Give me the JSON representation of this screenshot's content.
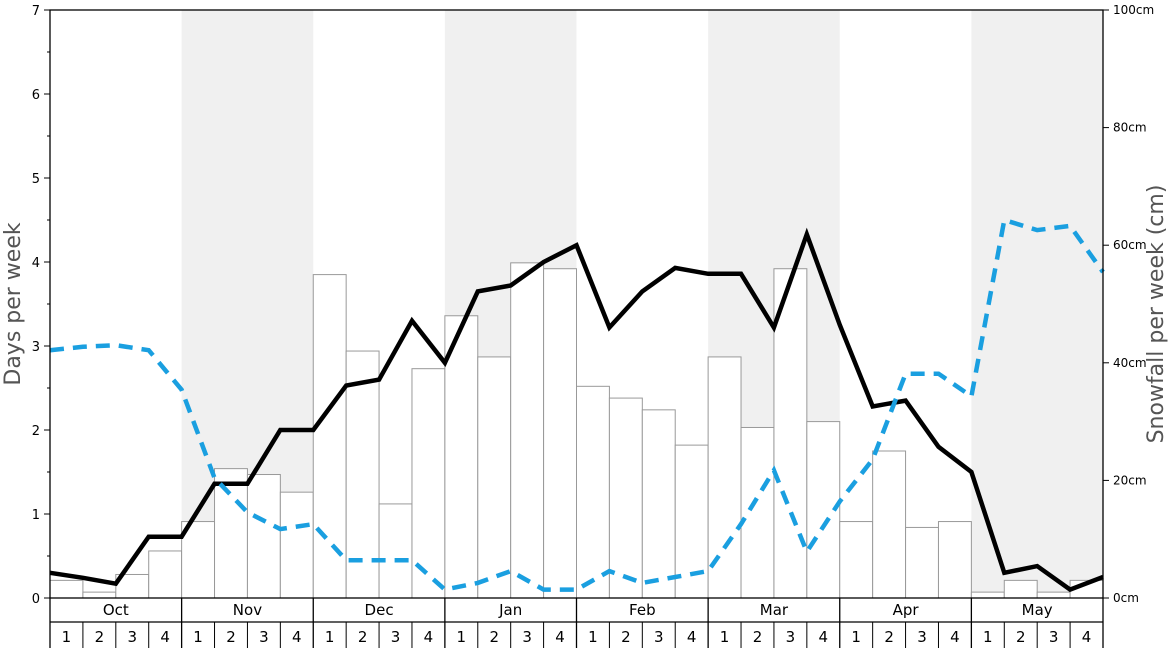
{
  "chart_data": {
    "type": "bar",
    "title": "",
    "ylabel_left": "Days per week",
    "ylabel_right": "Snowfall per week (cm)",
    "ylim_left": [
      0,
      7
    ],
    "ylim_right": [
      0,
      100
    ],
    "left_ticks": [
      "0",
      "1",
      "2",
      "3",
      "4",
      "5",
      "6",
      "7"
    ],
    "right_ticks": [
      "0cm",
      "20cm",
      "40cm",
      "60cm",
      "80cm",
      "100cm"
    ],
    "right_tick_values": [
      0,
      20,
      40,
      60,
      80,
      100
    ],
    "months": [
      "Oct",
      "Nov",
      "Dec",
      "Jan",
      "Feb",
      "Mar",
      "Apr",
      "May"
    ],
    "shaded_months": [
      "Nov",
      "Jan",
      "Mar",
      "May"
    ],
    "weeks": [
      "1",
      "2",
      "3",
      "4"
    ],
    "colors": {
      "bar_fill": "#ffffff",
      "bar_stroke": "#999999",
      "solid_line": "#000000",
      "dashed_line": "#1a9fe0",
      "shade": "#f0f0f0"
    },
    "series": [
      {
        "kind": "bars",
        "axis": "right",
        "values": [
          3,
          1,
          4,
          8,
          13,
          22,
          21,
          18,
          55,
          42,
          16,
          39,
          48,
          41,
          57,
          56,
          36,
          34,
          32,
          26,
          41,
          29,
          56,
          30,
          13,
          25,
          12,
          13,
          1,
          3,
          1,
          3
        ]
      },
      {
        "kind": "line",
        "style": "solid",
        "axis": "left",
        "values": [
          0.3,
          0.24,
          0.17,
          0.73,
          0.73,
          1.36,
          1.36,
          2.0,
          2.0,
          2.53,
          2.6,
          3.3,
          2.8,
          3.65,
          3.72,
          4.0,
          4.2,
          3.22,
          3.65,
          3.93,
          3.86,
          3.86,
          3.22,
          4.33,
          3.25,
          2.28,
          2.35,
          1.8,
          1.5,
          0.3,
          0.38,
          0.1,
          0.25
        ]
      },
      {
        "kind": "line",
        "style": "dashed",
        "axis": "left",
        "values": [
          2.95,
          2.99,
          3.01,
          2.95,
          2.48,
          1.43,
          1.02,
          0.82,
          0.88,
          0.45,
          0.45,
          0.45,
          0.1,
          0.18,
          0.32,
          0.1,
          0.1,
          0.32,
          0.18,
          0.25,
          0.32,
          0.88,
          1.52,
          0.55,
          1.15,
          1.65,
          2.67,
          2.67,
          2.4,
          4.5,
          4.38,
          4.43,
          3.88
        ]
      }
    ]
  }
}
